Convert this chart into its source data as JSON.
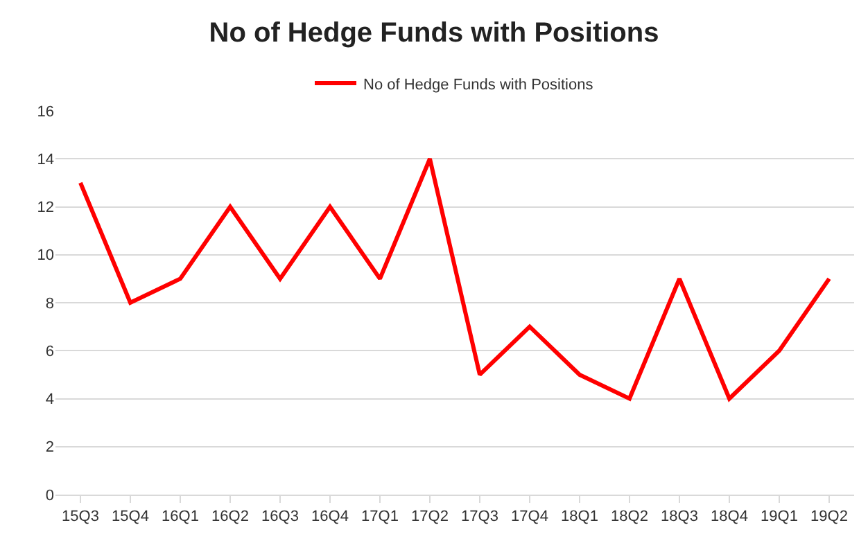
{
  "chart_data": {
    "type": "line",
    "title": "No of Hedge Funds with Positions",
    "categories": [
      "15Q3",
      "15Q4",
      "16Q1",
      "16Q2",
      "16Q3",
      "16Q4",
      "17Q1",
      "17Q2",
      "17Q3",
      "17Q4",
      "18Q1",
      "18Q2",
      "18Q3",
      "18Q4",
      "19Q1",
      "19Q2"
    ],
    "series": [
      {
        "name": "No of Hedge Funds with Positions",
        "color": "#ff0000",
        "values": [
          13,
          8,
          9,
          12,
          9,
          12,
          9,
          14,
          5,
          7,
          5,
          4,
          9,
          4,
          6,
          9
        ]
      }
    ],
    "ylim": [
      0,
      16
    ],
    "yticks": [
      0,
      2,
      4,
      6,
      8,
      10,
      12,
      14,
      16
    ],
    "grid": "y",
    "legend": "top",
    "marker": "none",
    "line_style": "solid"
  }
}
